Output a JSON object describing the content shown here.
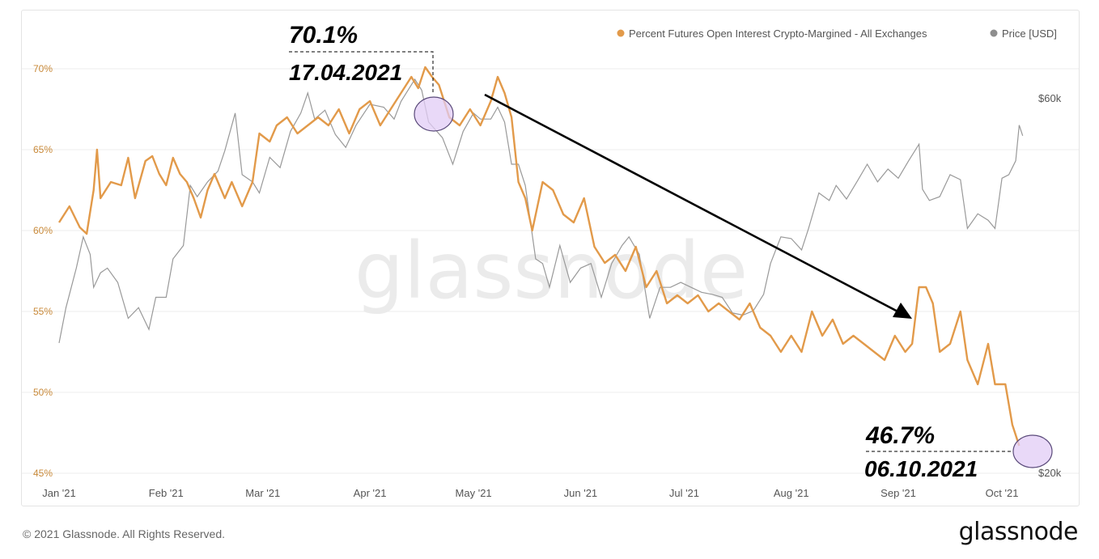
{
  "colors": {
    "pct_series": "#e29a4a",
    "price_series": "#999999",
    "grid": "#ececec",
    "left_axis_text": "#c98a3a",
    "annotation": "#000000",
    "highlight_fill": "#e2ccf6",
    "highlight_stroke": "#5a4a7a"
  },
  "legend": {
    "pct_label": "Percent Futures Open Interest Crypto-Margined - All Exchanges",
    "price_label": "Price [USD]",
    "placement": "top-right"
  },
  "watermark": "glassnode",
  "footer": {
    "copyright": "© 2021 Glassnode. All Rights Reserved.",
    "logo": "glassnode"
  },
  "annotations": {
    "peak": {
      "value": "70.1%",
      "date": "17.04.2021"
    },
    "end": {
      "value": "46.7%",
      "date": "06.10.2021"
    }
  },
  "chart_data": {
    "type": "line",
    "x_axis": {
      "type": "date",
      "range": [
        "2021-01-01",
        "2021-10-12"
      ],
      "ticks": [
        "Jan '21",
        "Feb '21",
        "Mar '21",
        "Apr '21",
        "May '21",
        "Jun '21",
        "Jul '21",
        "Aug '21",
        "Sep '21",
        "Oct '21"
      ],
      "tick_dates": [
        "2021-01-01",
        "2021-02-01",
        "2021-03-01",
        "2021-04-01",
        "2021-05-01",
        "2021-06-01",
        "2021-07-01",
        "2021-08-01",
        "2021-09-01",
        "2021-10-01"
      ]
    },
    "y_left": {
      "range": [
        45,
        72
      ],
      "ticks": [
        "45%",
        "50%",
        "55%",
        "60%",
        "65%",
        "70%"
      ],
      "tick_values": [
        45,
        50,
        55,
        60,
        65,
        70
      ]
    },
    "y_right": {
      "scale": "log",
      "range": [
        20000,
        72000
      ],
      "ticks": [
        "$20k",
        "$60k"
      ],
      "tick_values": [
        20000,
        60000
      ]
    },
    "grid": true,
    "series": [
      {
        "name": "Percent Futures Open Interest Crypto-Margined - All Exchanges",
        "axis": "left",
        "points": [
          [
            "2021-01-01",
            60.5
          ],
          [
            "2021-01-04",
            61.5
          ],
          [
            "2021-01-07",
            60.2
          ],
          [
            "2021-01-09",
            59.8
          ],
          [
            "2021-01-11",
            62.5
          ],
          [
            "2021-01-12",
            65.0
          ],
          [
            "2021-01-13",
            62.0
          ],
          [
            "2021-01-16",
            63.0
          ],
          [
            "2021-01-19",
            62.8
          ],
          [
            "2021-01-21",
            64.5
          ],
          [
            "2021-01-23",
            62.0
          ],
          [
            "2021-01-26",
            64.3
          ],
          [
            "2021-01-28",
            64.6
          ],
          [
            "2021-01-30",
            63.5
          ],
          [
            "2021-02-01",
            62.8
          ],
          [
            "2021-02-03",
            64.5
          ],
          [
            "2021-02-05",
            63.5
          ],
          [
            "2021-02-07",
            63.0
          ],
          [
            "2021-02-09",
            62.0
          ],
          [
            "2021-02-11",
            60.8
          ],
          [
            "2021-02-13",
            62.5
          ],
          [
            "2021-02-15",
            63.5
          ],
          [
            "2021-02-18",
            62.0
          ],
          [
            "2021-02-20",
            63.0
          ],
          [
            "2021-02-23",
            61.5
          ],
          [
            "2021-02-26",
            63.0
          ],
          [
            "2021-02-28",
            66.0
          ],
          [
            "2021-03-03",
            65.5
          ],
          [
            "2021-03-05",
            66.5
          ],
          [
            "2021-03-08",
            67.0
          ],
          [
            "2021-03-11",
            66.0
          ],
          [
            "2021-03-14",
            66.5
          ],
          [
            "2021-03-17",
            67.0
          ],
          [
            "2021-03-20",
            66.5
          ],
          [
            "2021-03-23",
            67.5
          ],
          [
            "2021-03-26",
            66.0
          ],
          [
            "2021-03-29",
            67.5
          ],
          [
            "2021-04-01",
            68.0
          ],
          [
            "2021-04-04",
            66.5
          ],
          [
            "2021-04-07",
            67.5
          ],
          [
            "2021-04-10",
            68.5
          ],
          [
            "2021-04-13",
            69.5
          ],
          [
            "2021-04-15",
            68.8
          ],
          [
            "2021-04-17",
            70.1
          ],
          [
            "2021-04-19",
            69.5
          ],
          [
            "2021-04-21",
            69.0
          ],
          [
            "2021-04-24",
            67.0
          ],
          [
            "2021-04-27",
            66.5
          ],
          [
            "2021-04-30",
            67.5
          ],
          [
            "2021-05-03",
            66.5
          ],
          [
            "2021-05-06",
            68.0
          ],
          [
            "2021-05-08",
            69.5
          ],
          [
            "2021-05-10",
            68.5
          ],
          [
            "2021-05-12",
            67.0
          ],
          [
            "2021-05-14",
            63.0
          ],
          [
            "2021-05-16",
            62.0
          ],
          [
            "2021-05-18",
            60.0
          ],
          [
            "2021-05-21",
            63.0
          ],
          [
            "2021-05-24",
            62.5
          ],
          [
            "2021-05-27",
            61.0
          ],
          [
            "2021-05-30",
            60.5
          ],
          [
            "2021-06-02",
            62.0
          ],
          [
            "2021-06-05",
            59.0
          ],
          [
            "2021-06-08",
            58.0
          ],
          [
            "2021-06-11",
            58.5
          ],
          [
            "2021-06-14",
            57.5
          ],
          [
            "2021-06-17",
            59.0
          ],
          [
            "2021-06-20",
            56.5
          ],
          [
            "2021-06-23",
            57.5
          ],
          [
            "2021-06-26",
            55.5
          ],
          [
            "2021-06-29",
            56.0
          ],
          [
            "2021-07-02",
            55.5
          ],
          [
            "2021-07-05",
            56.0
          ],
          [
            "2021-07-08",
            55.0
          ],
          [
            "2021-07-11",
            55.5
          ],
          [
            "2021-07-14",
            55.0
          ],
          [
            "2021-07-17",
            54.5
          ],
          [
            "2021-07-20",
            55.5
          ],
          [
            "2021-07-23",
            54.0
          ],
          [
            "2021-07-26",
            53.5
          ],
          [
            "2021-07-29",
            52.5
          ],
          [
            "2021-08-01",
            53.5
          ],
          [
            "2021-08-04",
            52.5
          ],
          [
            "2021-08-07",
            55.0
          ],
          [
            "2021-08-10",
            53.5
          ],
          [
            "2021-08-13",
            54.5
          ],
          [
            "2021-08-16",
            53.0
          ],
          [
            "2021-08-19",
            53.5
          ],
          [
            "2021-08-22",
            53.0
          ],
          [
            "2021-08-25",
            52.5
          ],
          [
            "2021-08-28",
            52.0
          ],
          [
            "2021-08-31",
            53.5
          ],
          [
            "2021-09-03",
            52.5
          ],
          [
            "2021-09-05",
            53.0
          ],
          [
            "2021-09-07",
            56.5
          ],
          [
            "2021-09-09",
            56.5
          ],
          [
            "2021-09-11",
            55.5
          ],
          [
            "2021-09-13",
            52.5
          ],
          [
            "2021-09-16",
            53.0
          ],
          [
            "2021-09-19",
            55.0
          ],
          [
            "2021-09-21",
            52.0
          ],
          [
            "2021-09-24",
            50.5
          ],
          [
            "2021-09-27",
            53.0
          ],
          [
            "2021-09-29",
            50.5
          ],
          [
            "2021-10-02",
            50.5
          ],
          [
            "2021-10-04",
            48.0
          ],
          [
            "2021-10-06",
            46.7
          ]
        ]
      },
      {
        "name": "Price [USD]",
        "axis": "right",
        "points": [
          [
            "2021-01-01",
            29300
          ],
          [
            "2021-01-03",
            32500
          ],
          [
            "2021-01-06",
            36500
          ],
          [
            "2021-01-08",
            40000
          ],
          [
            "2021-01-10",
            38000
          ],
          [
            "2021-01-11",
            34500
          ],
          [
            "2021-01-13",
            36000
          ],
          [
            "2021-01-15",
            36500
          ],
          [
            "2021-01-18",
            35000
          ],
          [
            "2021-01-21",
            31500
          ],
          [
            "2021-01-24",
            32500
          ],
          [
            "2021-01-27",
            30500
          ],
          [
            "2021-01-29",
            33500
          ],
          [
            "2021-02-01",
            33500
          ],
          [
            "2021-02-03",
            37500
          ],
          [
            "2021-02-06",
            39000
          ],
          [
            "2021-02-08",
            46500
          ],
          [
            "2021-02-10",
            45000
          ],
          [
            "2021-02-13",
            47000
          ],
          [
            "2021-02-16",
            48500
          ],
          [
            "2021-02-18",
            51500
          ],
          [
            "2021-02-21",
            57500
          ],
          [
            "2021-02-23",
            48000
          ],
          [
            "2021-02-26",
            47000
          ],
          [
            "2021-02-28",
            45500
          ],
          [
            "2021-03-03",
            50500
          ],
          [
            "2021-03-06",
            49000
          ],
          [
            "2021-03-09",
            54500
          ],
          [
            "2021-03-12",
            57500
          ],
          [
            "2021-03-14",
            61000
          ],
          [
            "2021-03-16",
            56500
          ],
          [
            "2021-03-19",
            58000
          ],
          [
            "2021-03-22",
            54000
          ],
          [
            "2021-03-25",
            52000
          ],
          [
            "2021-03-28",
            55500
          ],
          [
            "2021-04-01",
            59000
          ],
          [
            "2021-04-05",
            58500
          ],
          [
            "2021-04-08",
            56500
          ],
          [
            "2021-04-10",
            59500
          ],
          [
            "2021-04-14",
            63500
          ],
          [
            "2021-04-16",
            61500
          ],
          [
            "2021-04-18",
            56000
          ],
          [
            "2021-04-22",
            53500
          ],
          [
            "2021-04-25",
            49500
          ],
          [
            "2021-04-28",
            54500
          ],
          [
            "2021-05-01",
            57500
          ],
          [
            "2021-05-03",
            56500
          ],
          [
            "2021-05-06",
            56500
          ],
          [
            "2021-05-08",
            58500
          ],
          [
            "2021-05-10",
            56000
          ],
          [
            "2021-05-12",
            49500
          ],
          [
            "2021-05-14",
            49500
          ],
          [
            "2021-05-16",
            46500
          ],
          [
            "2021-05-19",
            37500
          ],
          [
            "2021-05-21",
            37000
          ],
          [
            "2021-05-23",
            34500
          ],
          [
            "2021-05-26",
            39000
          ],
          [
            "2021-05-29",
            35000
          ],
          [
            "2021-06-01",
            36500
          ],
          [
            "2021-06-04",
            37000
          ],
          [
            "2021-06-07",
            33500
          ],
          [
            "2021-06-10",
            37000
          ],
          [
            "2021-06-13",
            39000
          ],
          [
            "2021-06-15",
            40000
          ],
          [
            "2021-06-18",
            38000
          ],
          [
            "2021-06-21",
            31500
          ],
          [
            "2021-06-24",
            34500
          ],
          [
            "2021-06-27",
            34500
          ],
          [
            "2021-06-30",
            35000
          ],
          [
            "2021-07-03",
            34500
          ],
          [
            "2021-07-06",
            34000
          ],
          [
            "2021-07-09",
            33800
          ],
          [
            "2021-07-12",
            33500
          ],
          [
            "2021-07-15",
            32000
          ],
          [
            "2021-07-18",
            31800
          ],
          [
            "2021-07-21",
            32200
          ],
          [
            "2021-07-24",
            33800
          ],
          [
            "2021-07-26",
            37000
          ],
          [
            "2021-07-29",
            40000
          ],
          [
            "2021-08-01",
            39800
          ],
          [
            "2021-08-04",
            38500
          ],
          [
            "2021-08-06",
            41000
          ],
          [
            "2021-08-09",
            45500
          ],
          [
            "2021-08-12",
            44500
          ],
          [
            "2021-08-14",
            46500
          ],
          [
            "2021-08-17",
            44700
          ],
          [
            "2021-08-20",
            47000
          ],
          [
            "2021-08-23",
            49500
          ],
          [
            "2021-08-26",
            47000
          ],
          [
            "2021-08-29",
            48800
          ],
          [
            "2021-09-01",
            47500
          ],
          [
            "2021-09-04",
            50000
          ],
          [
            "2021-09-07",
            52500
          ],
          [
            "2021-09-08",
            46000
          ],
          [
            "2021-09-10",
            44500
          ],
          [
            "2021-09-13",
            45000
          ],
          [
            "2021-09-16",
            48000
          ],
          [
            "2021-09-19",
            47300
          ],
          [
            "2021-09-21",
            41000
          ],
          [
            "2021-09-24",
            42800
          ],
          [
            "2021-09-27",
            42000
          ],
          [
            "2021-09-29",
            41000
          ],
          [
            "2021-10-01",
            47500
          ],
          [
            "2021-10-03",
            48000
          ],
          [
            "2021-10-05",
            50000
          ],
          [
            "2021-10-06",
            55500
          ],
          [
            "2021-10-07",
            53800
          ]
        ]
      }
    ]
  }
}
